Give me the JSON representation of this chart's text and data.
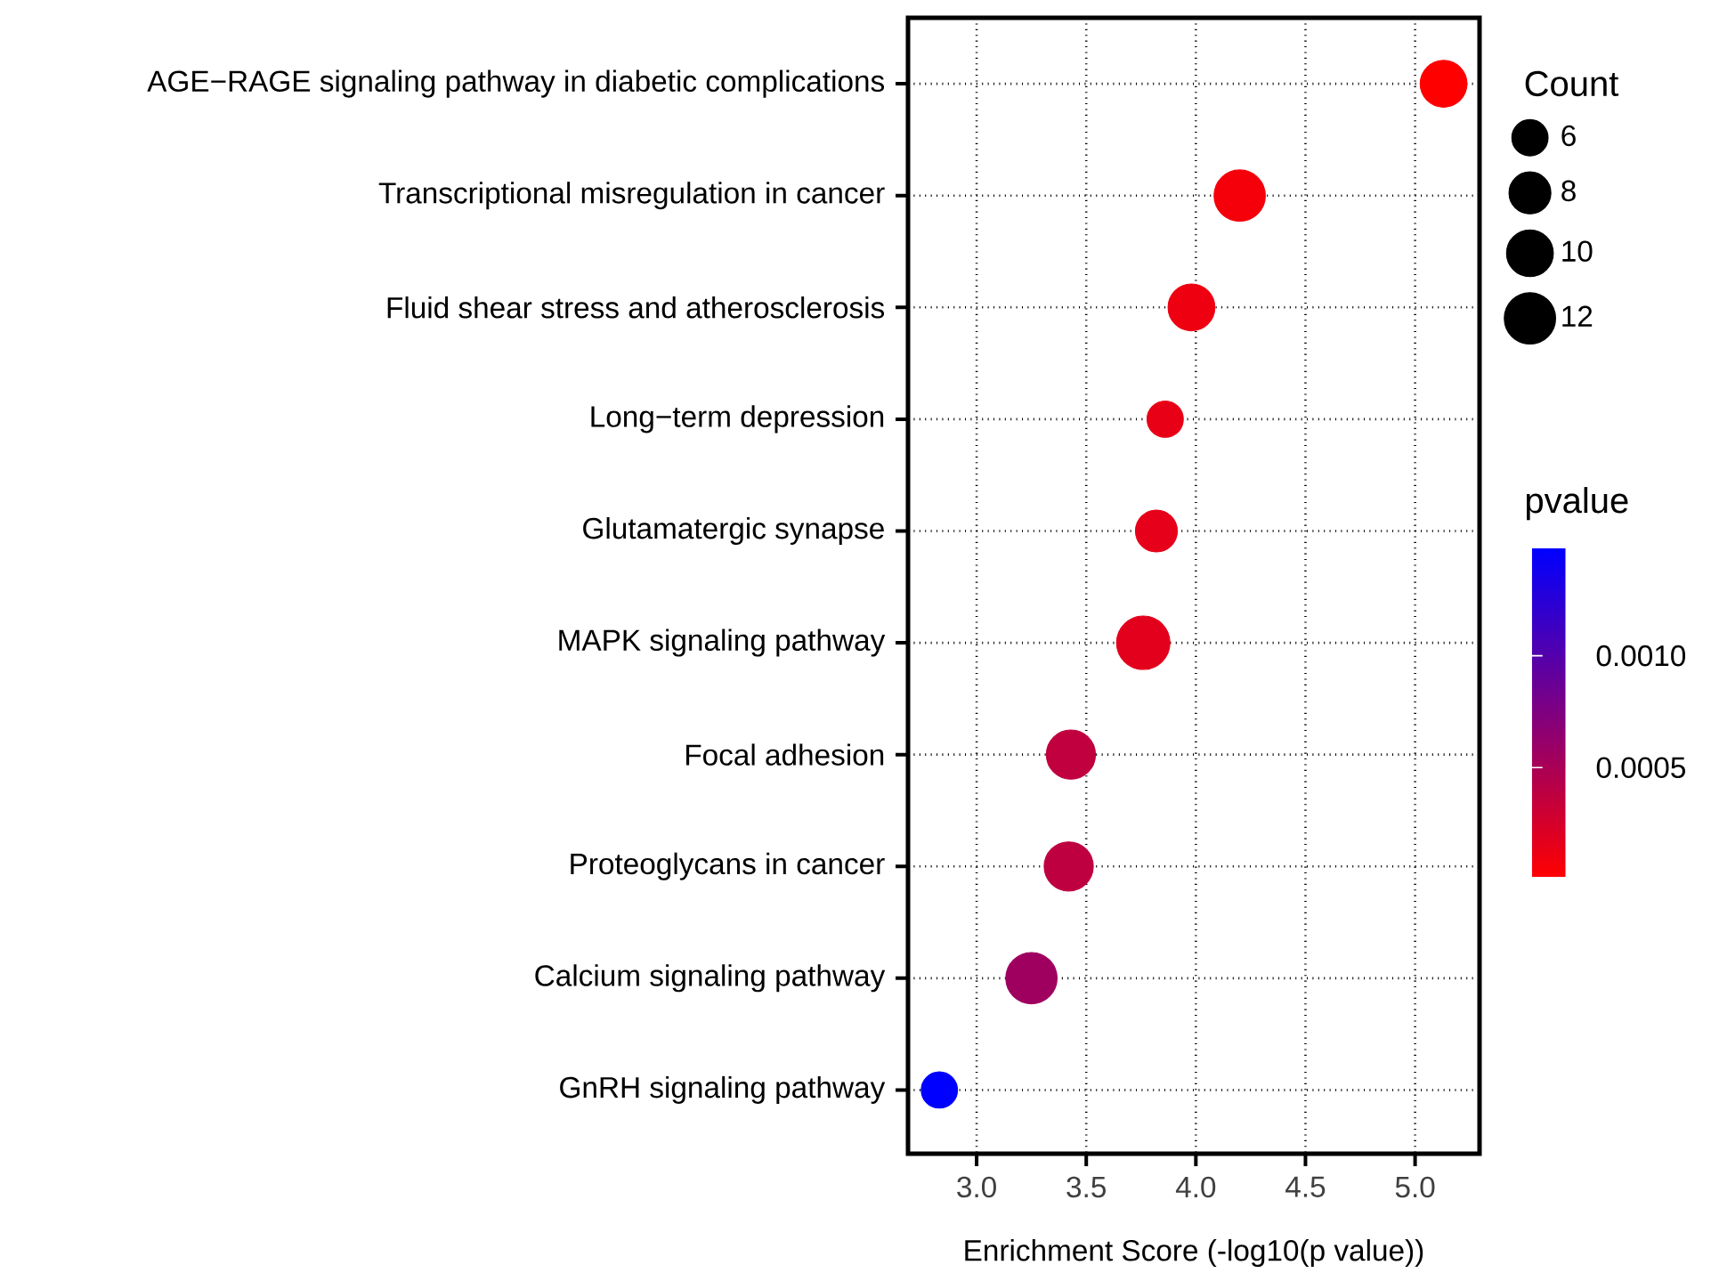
{
  "chart_data": {
    "type": "bubble",
    "orientation": "horizontal",
    "categories": [
      "AGE−RAGE signaling pathway in diabetic complications",
      "Transcriptional misregulation in cancer",
      "Fluid shear stress and atherosclerosis",
      "Long−term depression",
      "Glutamatergic synapse",
      "MAPK signaling pathway",
      "Focal adhesion",
      "Proteoglycans in cancer",
      "Calcium signaling pathway",
      "GnRH signaling pathway"
    ],
    "values": [
      5.13,
      4.2,
      3.98,
      3.86,
      3.82,
      3.76,
      3.43,
      3.42,
      3.25,
      2.83
    ],
    "sizes": [
      10,
      12,
      10,
      6,
      8,
      13,
      11,
      11,
      12,
      6
    ],
    "cvalues": [
      7.4e-06,
      6.3e-05,
      0.000105,
      0.00014,
      0.00015,
      0.00017,
      0.00037,
      0.00038,
      0.00056,
      0.00148
    ],
    "xlabel": "Enrichment Score (-log10(p value))",
    "xlim": [
      2.687,
      5.294
    ],
    "xticks": [
      {
        "value": 3,
        "label": "3.0"
      },
      {
        "value": 3.5,
        "label": "3.5"
      },
      {
        "value": 4,
        "label": "4.0"
      },
      {
        "value": 4.5,
        "label": "4.5"
      },
      {
        "value": 5,
        "label": "5.0"
      }
    ],
    "grid": true,
    "legend_title": "Count",
    "size_legend": [
      6,
      8,
      10,
      12
    ],
    "clabel": "pvalue",
    "clim": [
      7.4e-06,
      0.00148
    ],
    "cticks": [
      {
        "value": 0.0005,
        "label": "0.0005"
      },
      {
        "value": 0.001,
        "label": "0.0010"
      }
    ]
  }
}
